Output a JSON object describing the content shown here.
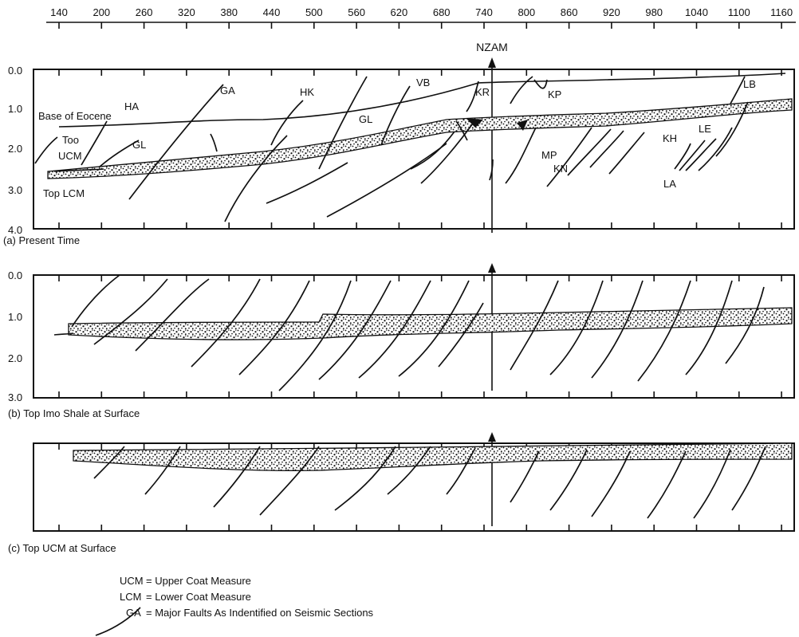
{
  "top_axis": {
    "ticks": [
      "140",
      "200",
      "260",
      "320",
      "380",
      "440",
      "500",
      "560",
      "620",
      "680",
      "740",
      "800",
      "860",
      "920",
      "980",
      "1040",
      "1100",
      "1160"
    ]
  },
  "marker": "NZAM",
  "panels": [
    {
      "caption": "(a) Present Time",
      "depth_ticks": [
        "0.0",
        "1.0",
        "2.0",
        "3.0",
        "4.0"
      ],
      "labels": [
        "Base of Eocene",
        "HA",
        "Too",
        "UCM",
        "GL",
        "Top LCM",
        "GA",
        "HK",
        "GL",
        "VB",
        "KR",
        "KP",
        "MP",
        "KN",
        "KH",
        "LE",
        "LA",
        "LB"
      ]
    },
    {
      "caption": "(b) Top Imo Shale at Surface",
      "depth_ticks": [
        "0.0",
        "1.0",
        "2.0",
        "3.0"
      ],
      "labels": []
    },
    {
      "caption": "(c) Top UCM at Surface",
      "depth_ticks": [],
      "labels": []
    }
  ],
  "legend": [
    {
      "abbr": "UCM",
      "text": "= Upper Coat Measure"
    },
    {
      "abbr": "LCM",
      "text": "= Lower Coat Measure"
    },
    {
      "abbr": "GA",
      "text": "= Major Faults As Indentified on Seismic Sections"
    }
  ]
}
